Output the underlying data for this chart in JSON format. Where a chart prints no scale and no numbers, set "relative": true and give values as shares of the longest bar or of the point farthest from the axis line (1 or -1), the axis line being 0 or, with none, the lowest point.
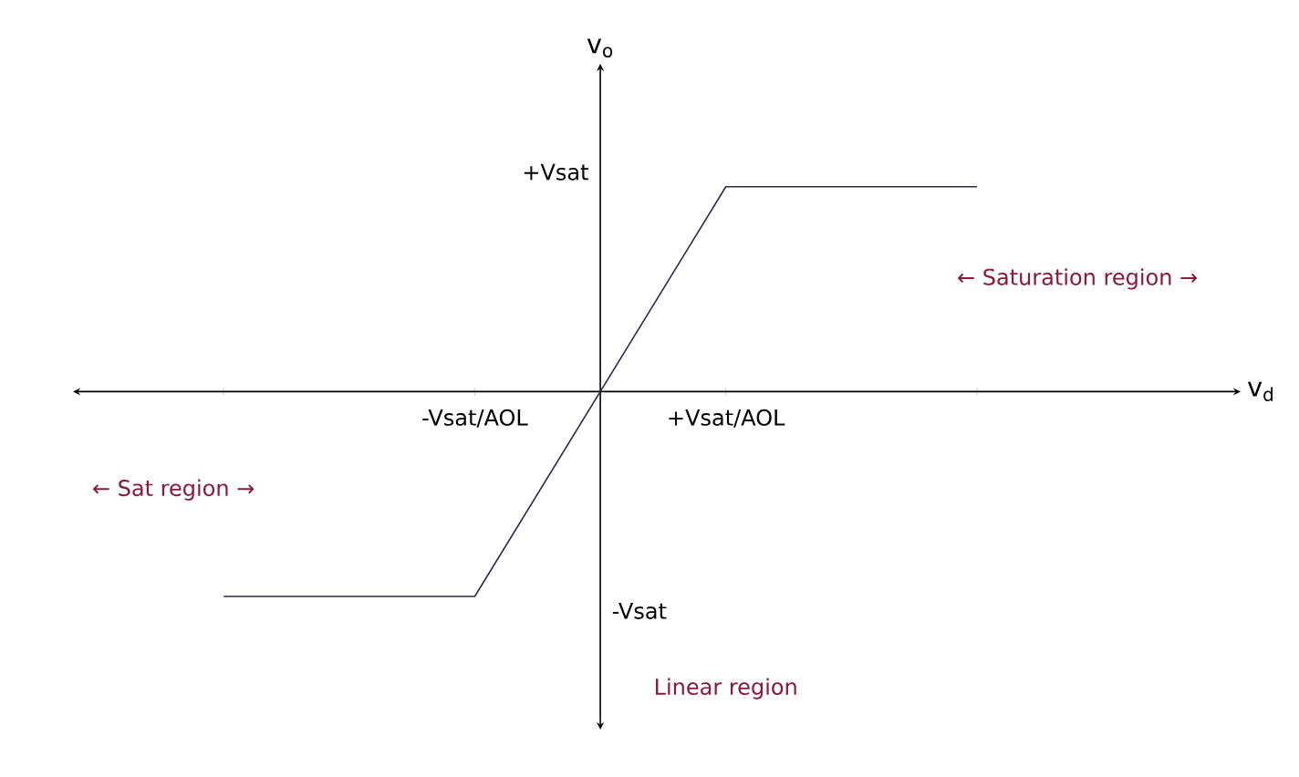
{
  "chart_data": {
    "type": "line",
    "relative": true,
    "xlabel": "v$_{d}$",
    "ylabel": "v$_{o}$",
    "categories": [
      null,
      "-Vsat/AOL",
      "+Vsat/AOL",
      null
    ],
    "values": [
      -1,
      -1,
      1,
      1
    ],
    "color": "#2b2b4a",
    "annotations": [
      "+Vsat",
      "-Vsat",
      "← Saturation region →",
      "← Sat region →",
      "Linear region"
    ]
  }
}
